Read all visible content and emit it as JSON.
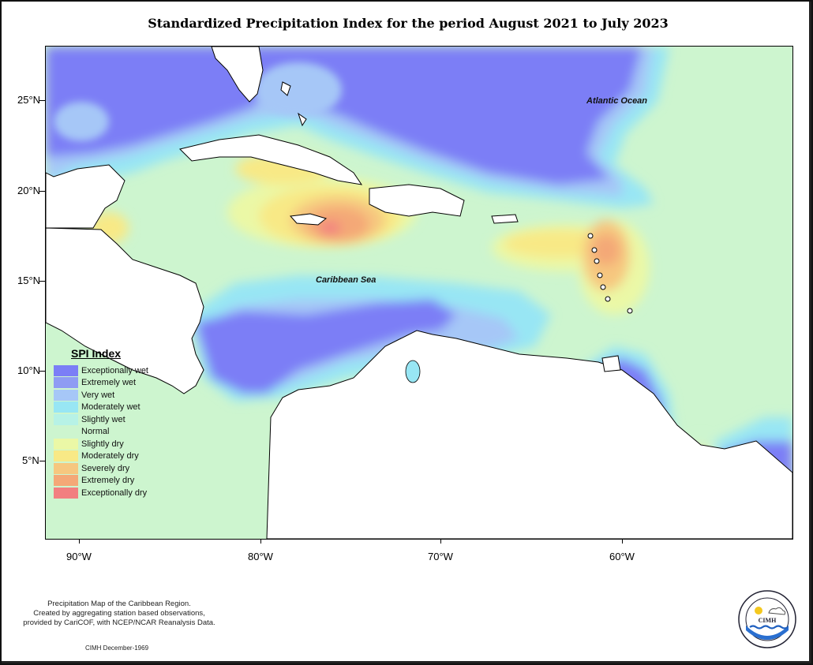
{
  "title": "Standardized Precipitation Index for the period August 2021 to July 2023",
  "axes": {
    "x_ticks": [
      "90°W",
      "80°W",
      "70°W",
      "60°W"
    ],
    "y_ticks": [
      "25°N",
      "20°N",
      "15°N",
      "10°N",
      "5°N"
    ]
  },
  "map_labels": {
    "atlantic": "Atlantic Ocean",
    "caribbean": "Caribbean Sea"
  },
  "legend": {
    "title": "SPI Index",
    "items": [
      {
        "label": "Exceptionally wet",
        "color": "#7b7ef6"
      },
      {
        "label": "Extremely wet",
        "color": "#8e9cf3"
      },
      {
        "label": "Very wet",
        "color": "#a6c7f7"
      },
      {
        "label": "Moderately wet",
        "color": "#98e6f4"
      },
      {
        "label": "Slightly wet",
        "color": "#b7f2e6"
      },
      {
        "label": "Normal",
        "color": "#cdf5cf"
      },
      {
        "label": "Slightly dry",
        "color": "#ebf8a6"
      },
      {
        "label": "Moderately dry",
        "color": "#f8e986"
      },
      {
        "label": "Severely dry",
        "color": "#f6c77f"
      },
      {
        "label": "Extremely dry",
        "color": "#f4a877"
      },
      {
        "label": "Exceptionally dry",
        "color": "#f27f80"
      }
    ]
  },
  "footnote": {
    "line1": "Precipitation Map of the Caribbean Region.",
    "line2": "Created by aggregating station based observations,",
    "line3": "provided by CariCOF, with NCEP/NCAR Reanalysis Data."
  },
  "stamp": "CIMH December-1969",
  "logo": {
    "ring_text": "Caribbean Institute for Meteorology and Hydrology",
    "abbrev": "CIMH"
  }
}
